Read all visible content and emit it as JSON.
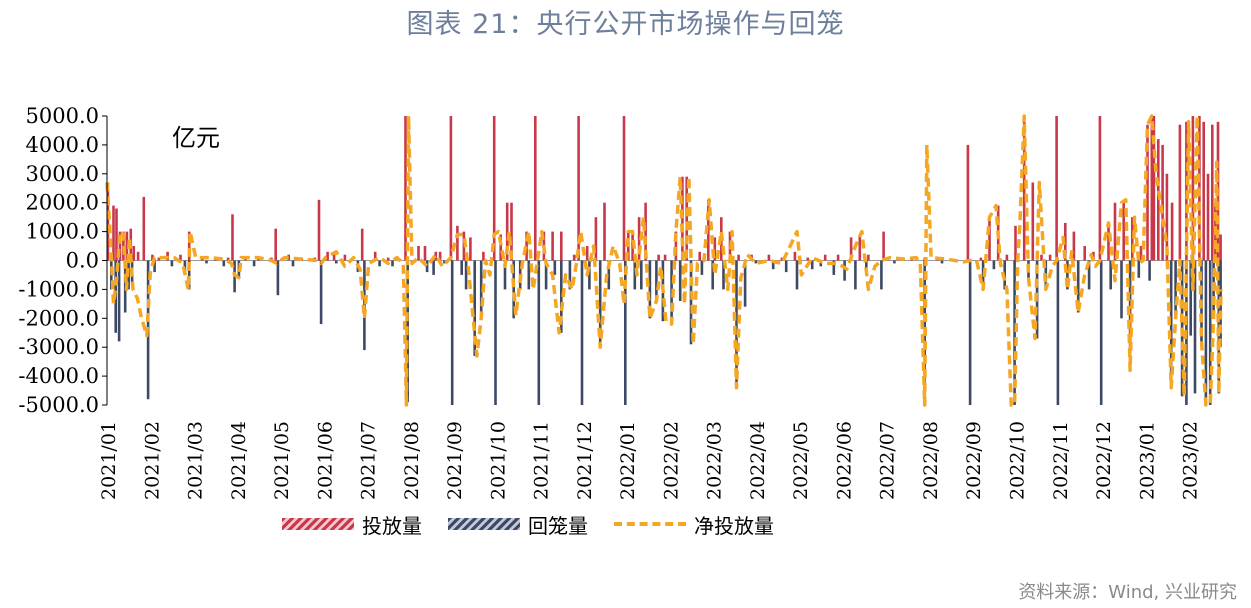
{
  "title": "图表 21：央行公开市场操作与回笼",
  "source": "资料来源：Wind, 兴业研究",
  "unit": "亿元",
  "colors": {
    "inject": "#c8384a",
    "withdraw": "#3d4a66",
    "net": "#f5a623",
    "title": "#6d7f9a"
  },
  "legend": {
    "inject": "投放量",
    "withdraw": "回笼量",
    "net": "净投放量"
  },
  "chart_data": {
    "type": "bar",
    "ylim": [
      -5000,
      5000
    ],
    "yticks": [
      "5000.0",
      "4000.0",
      "3000.0",
      "2000.0",
      "1000.0",
      "0.0",
      "-1000.0",
      "-2000.0",
      "-3000.0",
      "-4000.0",
      "-5000.0"
    ],
    "x_labels": [
      "2021/01",
      "2021/02",
      "2021/03",
      "2021/04",
      "2021/05",
      "2021/06",
      "2021/07",
      "2021/08",
      "2021/09",
      "2021/10",
      "2021/11",
      "2021/12",
      "2022/01",
      "2022/02",
      "2022/03",
      "2022/04",
      "2022/05",
      "2022/06",
      "2022/07",
      "2022/08",
      "2022/09",
      "2022/10",
      "2022/11",
      "2022/12",
      "2023/01",
      "2023/02"
    ],
    "t_max": 25.75,
    "inject": [
      [
        0.02,
        2700
      ],
      [
        0.15,
        1900
      ],
      [
        0.22,
        1800
      ],
      [
        0.3,
        1000
      ],
      [
        0.38,
        1000
      ],
      [
        0.46,
        1000
      ],
      [
        0.55,
        1100
      ],
      [
        0.62,
        500
      ],
      [
        0.72,
        300
      ],
      [
        0.85,
        2200
      ],
      [
        1.05,
        200
      ],
      [
        1.2,
        100
      ],
      [
        1.4,
        300
      ],
      [
        1.7,
        200
      ],
      [
        1.9,
        1000
      ],
      [
        2.2,
        100
      ],
      [
        2.5,
        100
      ],
      [
        2.8,
        100
      ],
      [
        2.9,
        1600
      ],
      [
        3.2,
        100
      ],
      [
        3.5,
        100
      ],
      [
        3.8,
        100
      ],
      [
        3.9,
        1100
      ],
      [
        4.2,
        200
      ],
      [
        4.5,
        100
      ],
      [
        4.8,
        100
      ],
      [
        4.9,
        2100
      ],
      [
        5.1,
        300
      ],
      [
        5.25,
        300
      ],
      [
        5.5,
        200
      ],
      [
        5.9,
        1100
      ],
      [
        6.2,
        300
      ],
      [
        6.5,
        100
      ],
      [
        6.9,
        5000
      ],
      [
        7.2,
        500
      ],
      [
        7.35,
        500
      ],
      [
        7.6,
        300
      ],
      [
        7.7,
        300
      ],
      [
        7.95,
        5000
      ],
      [
        8.1,
        1200
      ],
      [
        8.25,
        1000
      ],
      [
        8.4,
        800
      ],
      [
        8.7,
        300
      ],
      [
        8.95,
        5000
      ],
      [
        9.1,
        900
      ],
      [
        9.25,
        2000
      ],
      [
        9.35,
        2000
      ],
      [
        9.7,
        1000
      ],
      [
        9.9,
        5000
      ],
      [
        10.1,
        1000
      ],
      [
        10.3,
        1000
      ],
      [
        10.5,
        1000
      ],
      [
        10.8,
        200
      ],
      [
        10.9,
        5000
      ],
      [
        11.1,
        500
      ],
      [
        11.3,
        1500
      ],
      [
        11.5,
        2000
      ],
      [
        11.95,
        5000
      ],
      [
        12.05,
        1000
      ],
      [
        12.15,
        1000
      ],
      [
        12.3,
        1500
      ],
      [
        12.45,
        2000
      ],
      [
        12.75,
        200
      ],
      [
        12.9,
        200
      ],
      [
        13.15,
        1000
      ],
      [
        13.3,
        2900
      ],
      [
        13.4,
        2900
      ],
      [
        13.7,
        300
      ],
      [
        13.9,
        2100
      ],
      [
        14.05,
        800
      ],
      [
        14.2,
        1500
      ],
      [
        14.4,
        1000
      ],
      [
        14.6,
        200
      ],
      [
        14.9,
        200
      ],
      [
        15.3,
        200
      ],
      [
        15.6,
        100
      ],
      [
        15.9,
        300
      ],
      [
        16.2,
        100
      ],
      [
        16.6,
        200
      ],
      [
        16.9,
        200
      ],
      [
        17.2,
        800
      ],
      [
        17.4,
        900
      ],
      [
        17.6,
        200
      ],
      [
        17.95,
        1000
      ],
      [
        18.3,
        100
      ],
      [
        18.6,
        100
      ],
      [
        18.9,
        100
      ],
      [
        19.2,
        100
      ],
      [
        19.9,
        4000
      ],
      [
        20.2,
        100
      ],
      [
        20.4,
        1500
      ],
      [
        20.6,
        1900
      ],
      [
        20.8,
        200
      ],
      [
        21.0,
        1200
      ],
      [
        21.2,
        5000
      ],
      [
        21.4,
        2700
      ],
      [
        21.6,
        200
      ],
      [
        21.8,
        200
      ],
      [
        21.95,
        5000
      ],
      [
        22.15,
        1300
      ],
      [
        22.35,
        1000
      ],
      [
        22.6,
        500
      ],
      [
        22.8,
        300
      ],
      [
        22.95,
        5000
      ],
      [
        23.15,
        1300
      ],
      [
        23.3,
        2000
      ],
      [
        23.5,
        2100
      ],
      [
        23.7,
        1500
      ],
      [
        23.9,
        500
      ],
      [
        24.05,
        4700
      ],
      [
        24.15,
        5000
      ],
      [
        24.2,
        5000
      ],
      [
        24.3,
        4200
      ],
      [
        24.4,
        4000
      ],
      [
        24.5,
        3000
      ],
      [
        24.62,
        2000
      ],
      [
        24.8,
        4700
      ],
      [
        24.95,
        4800
      ],
      [
        25.1,
        5000
      ],
      [
        25.25,
        5000
      ],
      [
        25.35,
        4800
      ],
      [
        25.45,
        3000
      ],
      [
        25.55,
        4700
      ],
      [
        25.62,
        2000
      ],
      [
        25.68,
        4800
      ],
      [
        25.74,
        900
      ]
    ],
    "withdraw": [
      [
        0.1,
        -1000
      ],
      [
        0.2,
        -2500
      ],
      [
        0.28,
        -2800
      ],
      [
        0.42,
        -1800
      ],
      [
        0.5,
        -1000
      ],
      [
        0.58,
        -800
      ],
      [
        0.95,
        -4800
      ],
      [
        1.1,
        -400
      ],
      [
        1.5,
        -200
      ],
      [
        1.8,
        -400
      ],
      [
        1.9,
        -1000
      ],
      [
        2.3,
        -100
      ],
      [
        2.7,
        -200
      ],
      [
        3.05,
        -600
      ],
      [
        2.95,
        -1100
      ],
      [
        3.4,
        -200
      ],
      [
        3.95,
        -1200
      ],
      [
        4.3,
        -200
      ],
      [
        4.95,
        -2200
      ],
      [
        5.3,
        -100
      ],
      [
        5.8,
        -400
      ],
      [
        5.95,
        -3100
      ],
      [
        6.3,
        -200
      ],
      [
        6.6,
        -200
      ],
      [
        6.95,
        -4900
      ],
      [
        7.4,
        -400
      ],
      [
        7.55,
        -500
      ],
      [
        7.8,
        -100
      ],
      [
        7.98,
        -5000
      ],
      [
        8.2,
        -500
      ],
      [
        8.3,
        -1000
      ],
      [
        8.5,
        -3300
      ],
      [
        8.65,
        -2000
      ],
      [
        8.98,
        -5000
      ],
      [
        9.2,
        -1000
      ],
      [
        9.4,
        -2000
      ],
      [
        9.55,
        -1000
      ],
      [
        9.75,
        -1000
      ],
      [
        9.98,
        -5000
      ],
      [
        10.15,
        -1000
      ],
      [
        10.35,
        -500
      ],
      [
        10.5,
        -2500
      ],
      [
        10.7,
        -1000
      ],
      [
        10.98,
        -5000
      ],
      [
        11.15,
        -1000
      ],
      [
        11.4,
        -3000
      ],
      [
        11.6,
        -1000
      ],
      [
        11.98,
        -5000
      ],
      [
        12.2,
        -1000
      ],
      [
        12.35,
        -1000
      ],
      [
        12.55,
        -2000
      ],
      [
        12.7,
        -1400
      ],
      [
        12.85,
        -2100
      ],
      [
        13.05,
        -2200
      ],
      [
        13.25,
        -1400
      ],
      [
        13.5,
        -2900
      ],
      [
        13.75,
        -500
      ],
      [
        14.0,
        -1000
      ],
      [
        14.25,
        -1000
      ],
      [
        14.55,
        -4400
      ],
      [
        14.75,
        -1600
      ],
      [
        15.0,
        -100
      ],
      [
        15.4,
        -300
      ],
      [
        15.7,
        -400
      ],
      [
        15.95,
        -1000
      ],
      [
        16.3,
        -300
      ],
      [
        16.5,
        -200
      ],
      [
        16.8,
        -500
      ],
      [
        17.05,
        -700
      ],
      [
        17.3,
        -1000
      ],
      [
        17.55,
        -500
      ],
      [
        17.9,
        -1000
      ],
      [
        18.2,
        -100
      ],
      [
        18.9,
        -5000
      ],
      [
        19.3,
        -100
      ],
      [
        19.95,
        -5000
      ],
      [
        20.25,
        -1000
      ],
      [
        20.5,
        -300
      ],
      [
        20.75,
        -1000
      ],
      [
        20.98,
        -5000
      ],
      [
        21.3,
        -600
      ],
      [
        21.5,
        -2700
      ],
      [
        21.7,
        -1000
      ],
      [
        21.98,
        -5000
      ],
      [
        22.2,
        -1000
      ],
      [
        22.45,
        -1800
      ],
      [
        22.7,
        -1000
      ],
      [
        22.98,
        -5000
      ],
      [
        23.2,
        -1000
      ],
      [
        23.45,
        -2000
      ],
      [
        23.65,
        -3800
      ],
      [
        23.85,
        -600
      ],
      [
        24.1,
        -700
      ],
      [
        24.6,
        -4400
      ],
      [
        24.7,
        -2000
      ],
      [
        24.85,
        -4700
      ],
      [
        24.95,
        -5000
      ],
      [
        25.05,
        -2600
      ],
      [
        25.15,
        -4600
      ],
      [
        25.3,
        -2800
      ],
      [
        25.4,
        -5000
      ],
      [
        25.5,
        -5000
      ],
      [
        25.58,
        -2000
      ],
      [
        25.7,
        -4600
      ],
      [
        25.74,
        -3000
      ]
    ],
    "net": [
      [
        0.0,
        2700
      ],
      [
        0.08,
        700
      ],
      [
        0.15,
        -1500
      ],
      [
        0.22,
        -700
      ],
      [
        0.3,
        1000
      ],
      [
        0.38,
        900
      ],
      [
        0.45,
        -1000
      ],
      [
        0.52,
        800
      ],
      [
        0.6,
        -1000
      ],
      [
        0.7,
        -1300
      ],
      [
        0.8,
        -2000
      ],
      [
        0.92,
        -2600
      ],
      [
        1.0,
        -400
      ],
      [
        1.1,
        100
      ],
      [
        1.3,
        100
      ],
      [
        1.55,
        100
      ],
      [
        1.75,
        -100
      ],
      [
        1.88,
        -1000
      ],
      [
        1.92,
        1000
      ],
      [
        2.05,
        100
      ],
      [
        2.4,
        100
      ],
      [
        2.7,
        50
      ],
      [
        2.88,
        -100
      ],
      [
        2.95,
        -500
      ],
      [
        3.05,
        -600
      ],
      [
        3.1,
        100
      ],
      [
        3.5,
        100
      ],
      [
        3.8,
        0
      ],
      [
        3.92,
        -100
      ],
      [
        4.1,
        100
      ],
      [
        4.5,
        50
      ],
      [
        4.85,
        0
      ],
      [
        4.95,
        -100
      ],
      [
        5.05,
        100
      ],
      [
        5.3,
        300
      ],
      [
        5.5,
        -200
      ],
      [
        5.7,
        100
      ],
      [
        5.85,
        -300
      ],
      [
        5.95,
        -2000
      ],
      [
        6.05,
        -100
      ],
      [
        6.3,
        100
      ],
      [
        6.5,
        -100
      ],
      [
        6.7,
        100
      ],
      [
        6.85,
        -100
      ],
      [
        6.92,
        -5000
      ],
      [
        6.97,
        5000
      ],
      [
        7.05,
        -100
      ],
      [
        7.2,
        100
      ],
      [
        7.4,
        -200
      ],
      [
        7.6,
        200
      ],
      [
        7.75,
        -200
      ],
      [
        7.95,
        100
      ],
      [
        8.1,
        900
      ],
      [
        8.25,
        900
      ],
      [
        8.35,
        -200
      ],
      [
        8.45,
        -1800
      ],
      [
        8.55,
        -3300
      ],
      [
        8.65,
        -2000
      ],
      [
        8.75,
        0
      ],
      [
        8.85,
        -500
      ],
      [
        8.95,
        900
      ],
      [
        9.05,
        1000
      ],
      [
        9.2,
        -200
      ],
      [
        9.3,
        1000
      ],
      [
        9.45,
        -1900
      ],
      [
        9.6,
        -100
      ],
      [
        9.75,
        1000
      ],
      [
        9.85,
        -1000
      ],
      [
        9.95,
        0
      ],
      [
        10.05,
        1000
      ],
      [
        10.15,
        -100
      ],
      [
        10.3,
        -500
      ],
      [
        10.45,
        -2500
      ],
      [
        10.6,
        -500
      ],
      [
        10.75,
        -1000
      ],
      [
        10.85,
        -100
      ],
      [
        10.95,
        1000
      ],
      [
        11.1,
        -500
      ],
      [
        11.25,
        500
      ],
      [
        11.4,
        -3000
      ],
      [
        11.55,
        -500
      ],
      [
        11.7,
        500
      ],
      [
        11.85,
        -100
      ],
      [
        11.95,
        -1500
      ],
      [
        12.05,
        1000
      ],
      [
        12.15,
        1000
      ],
      [
        12.25,
        -500
      ],
      [
        12.4,
        1500
      ],
      [
        12.55,
        -2000
      ],
      [
        12.7,
        -1400
      ],
      [
        12.8,
        -200
      ],
      [
        12.92,
        -2100
      ],
      [
        13.05,
        -2200
      ],
      [
        13.15,
        1000
      ],
      [
        13.25,
        2900
      ],
      [
        13.35,
        -1500
      ],
      [
        13.45,
        2900
      ],
      [
        13.55,
        -2900
      ],
      [
        13.65,
        -100
      ],
      [
        13.8,
        0
      ],
      [
        13.92,
        2100
      ],
      [
        14.05,
        -500
      ],
      [
        14.2,
        1000
      ],
      [
        14.35,
        -1000
      ],
      [
        14.45,
        1000
      ],
      [
        14.55,
        -4400
      ],
      [
        14.65,
        -600
      ],
      [
        14.8,
        200
      ],
      [
        15.0,
        -100
      ],
      [
        15.3,
        0
      ],
      [
        15.6,
        -100
      ],
      [
        15.95,
        1000
      ],
      [
        16.05,
        -500
      ],
      [
        16.3,
        100
      ],
      [
        16.6,
        -100
      ],
      [
        16.9,
        -100
      ],
      [
        17.1,
        -300
      ],
      [
        17.3,
        500
      ],
      [
        17.45,
        1000
      ],
      [
        17.6,
        -1000
      ],
      [
        17.75,
        -200
      ],
      [
        17.9,
        0
      ],
      [
        18.1,
        100
      ],
      [
        18.4,
        50
      ],
      [
        18.7,
        100
      ],
      [
        18.8,
        -100
      ],
      [
        18.9,
        -5000
      ],
      [
        18.95,
        4000
      ],
      [
        19.05,
        100
      ],
      [
        19.4,
        50
      ],
      [
        19.8,
        -50
      ],
      [
        19.95,
        0
      ],
      [
        20.1,
        0
      ],
      [
        20.25,
        -1000
      ],
      [
        20.4,
        1500
      ],
      [
        20.55,
        1900
      ],
      [
        20.65,
        -100
      ],
      [
        20.8,
        -1000
      ],
      [
        20.9,
        -5000
      ],
      [
        20.98,
        -5000
      ],
      [
        21.05,
        0
      ],
      [
        21.1,
        1200
      ],
      [
        21.2,
        5000
      ],
      [
        21.3,
        -600
      ],
      [
        21.45,
        -2700
      ],
      [
        21.55,
        2700
      ],
      [
        21.7,
        -1000
      ],
      [
        21.85,
        -200
      ],
      [
        21.95,
        0
      ],
      [
        22.1,
        800
      ],
      [
        22.2,
        -1000
      ],
      [
        22.3,
        300
      ],
      [
        22.45,
        -1800
      ],
      [
        22.6,
        -500
      ],
      [
        22.75,
        200
      ],
      [
        22.85,
        -200
      ],
      [
        22.95,
        0
      ],
      [
        23.15,
        1300
      ],
      [
        23.3,
        -700
      ],
      [
        23.45,
        2000
      ],
      [
        23.55,
        2100
      ],
      [
        23.65,
        -3800
      ],
      [
        23.75,
        1500
      ],
      [
        23.85,
        -100
      ],
      [
        23.95,
        0
      ],
      [
        24.05,
        4700
      ],
      [
        24.15,
        5000
      ],
      [
        24.25,
        3000
      ],
      [
        24.4,
        1500
      ],
      [
        24.5,
        500
      ],
      [
        24.6,
        -4400
      ],
      [
        24.7,
        -2000
      ],
      [
        24.8,
        0
      ],
      [
        24.9,
        -4700
      ],
      [
        25.0,
        4800
      ],
      [
        25.1,
        -1000
      ],
      [
        25.2,
        5000
      ],
      [
        25.3,
        -2800
      ],
      [
        25.4,
        -5000
      ],
      [
        25.5,
        -5000
      ],
      [
        25.58,
        -2000
      ],
      [
        25.65,
        3400
      ],
      [
        25.7,
        -4600
      ],
      [
        25.75,
        -1000
      ]
    ]
  }
}
